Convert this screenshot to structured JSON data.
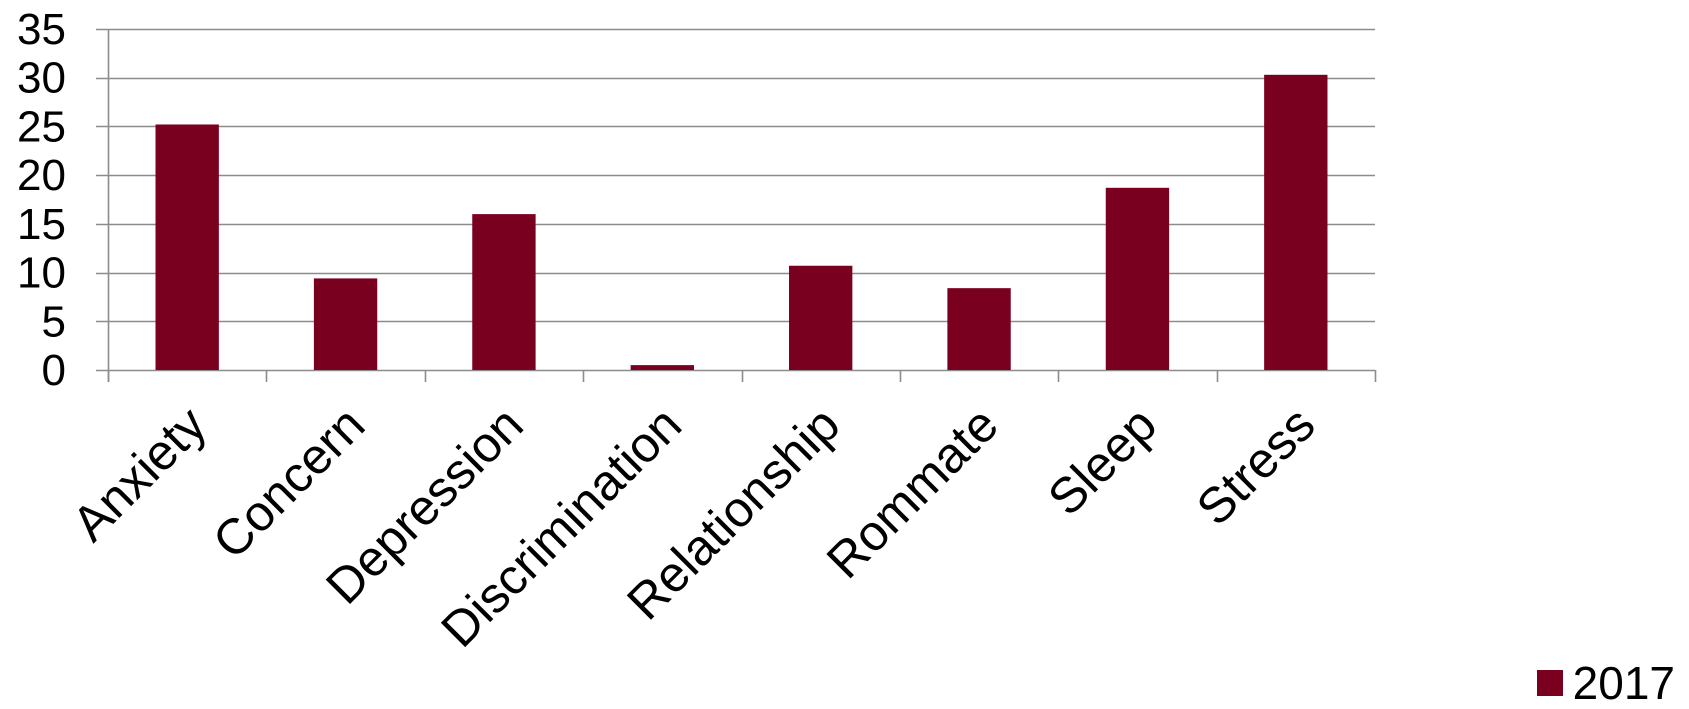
{
  "chart_data": {
    "type": "bar",
    "categories": [
      "Anxiety",
      "Concern",
      "Depression",
      "Discrimination",
      "Relationship",
      "Rommate",
      "Sleep",
      "Stress"
    ],
    "series": [
      {
        "name": "2017",
        "values": [
          25.2,
          9.4,
          16.0,
          0.5,
          10.7,
          8.4,
          18.7,
          30.3
        ],
        "color": "#7a0020"
      }
    ],
    "ylim": [
      0,
      35
    ],
    "yticks": [
      0,
      5,
      10,
      15,
      20,
      25,
      30,
      35
    ],
    "grid": true,
    "legend_position": "bottom-right",
    "gridline_color": "#8c8c8c"
  }
}
